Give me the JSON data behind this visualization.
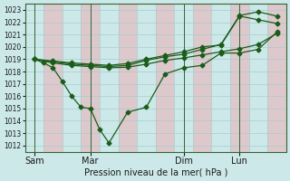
{
  "xlabel": "Pression niveau de la mer( hPa )",
  "bg_color": "#cce8e8",
  "plot_bg_color": "#cce8e8",
  "grid_color_main": "#aacccc",
  "grid_color_alt": "#ddbbcc",
  "line_color": "#1a5c1a",
  "ylim": [
    1011.5,
    1023.5
  ],
  "yticks": [
    1012,
    1013,
    1014,
    1015,
    1016,
    1017,
    1018,
    1019,
    1020,
    1021,
    1022,
    1023
  ],
  "xtick_labels": [
    "Sam",
    "Mar",
    "Dim",
    "Lun"
  ],
  "xtick_positions": [
    0,
    30,
    80,
    110
  ],
  "xlim": [
    -5,
    135
  ],
  "series1_x": [
    0,
    5,
    10,
    15,
    20,
    25,
    30,
    35,
    40,
    50,
    60,
    70,
    80,
    90,
    100,
    110,
    120,
    130
  ],
  "series1_y": [
    1019.0,
    1018.7,
    1018.3,
    1017.2,
    1016.0,
    1015.1,
    1015.0,
    1013.3,
    1012.2,
    1014.7,
    1015.1,
    1017.8,
    1018.3,
    1018.5,
    1019.5,
    1019.5,
    1019.8,
    1021.2
  ],
  "series2_x": [
    0,
    10,
    20,
    30,
    40,
    50,
    60,
    70,
    80,
    90,
    100,
    110,
    120,
    130
  ],
  "series2_y": [
    1019.0,
    1018.7,
    1018.5,
    1018.4,
    1018.3,
    1018.35,
    1018.6,
    1018.9,
    1019.1,
    1019.35,
    1019.6,
    1019.85,
    1020.2,
    1021.1
  ],
  "series3_x": [
    0,
    10,
    20,
    30,
    40,
    50,
    60,
    70,
    80,
    90,
    100,
    110,
    120,
    130
  ],
  "series3_y": [
    1019.0,
    1018.8,
    1018.6,
    1018.5,
    1018.4,
    1018.5,
    1018.9,
    1019.2,
    1019.4,
    1019.8,
    1020.2,
    1022.55,
    1022.85,
    1022.5
  ],
  "series4_x": [
    0,
    10,
    20,
    30,
    40,
    50,
    60,
    70,
    80,
    90,
    100,
    110,
    120,
    130
  ],
  "series4_y": [
    1019.0,
    1018.85,
    1018.7,
    1018.6,
    1018.5,
    1018.65,
    1019.0,
    1019.3,
    1019.6,
    1020.0,
    1020.15,
    1022.5,
    1022.2,
    1021.9
  ],
  "vline_positions": [
    0,
    30,
    80,
    110
  ],
  "markersize": 2.5,
  "lw": 0.9
}
